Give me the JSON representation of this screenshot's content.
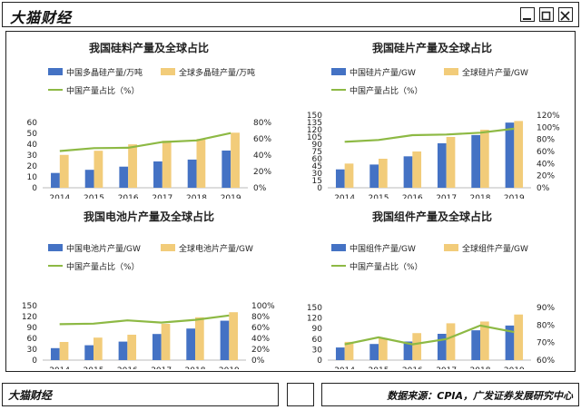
{
  "header": {
    "brand": "大猫财经"
  },
  "footer": {
    "brand": "大猫财经",
    "source": "数据来源：CPIA，广发证券发展研究中心"
  },
  "colors": {
    "china": "#4472C4",
    "global": "#F2CC7A",
    "share": "#8DB944"
  },
  "chart_data": [
    {
      "type": "bar",
      "title": "我国硅料产量及全球占比",
      "categories": [
        "2014",
        "2015",
        "2016",
        "2017",
        "2018",
        "2019"
      ],
      "series": [
        {
          "name": "中国多晶硅产量/万吨",
          "kind": "bar",
          "axis": "left",
          "values": [
            13.6,
            16.5,
            19.4,
            24.2,
            25.9,
            34.2
          ]
        },
        {
          "name": "全球多晶硅产量/万吨",
          "kind": "bar",
          "axis": "left",
          "values": [
            30.2,
            34.0,
            39.9,
            43.2,
            44.8,
            50.6
          ]
        },
        {
          "name": "中国产量占比（%）",
          "kind": "line",
          "axis": "right",
          "values": [
            45,
            48.5,
            49,
            56,
            58,
            67
          ]
        }
      ],
      "left_axis": {
        "min": 0,
        "max": 60,
        "ticks": [
          "0",
          "10",
          "20",
          "30",
          "40",
          "50",
          "60"
        ]
      },
      "right_axis": {
        "min": 0,
        "max": 80,
        "ticks": [
          "0%",
          "20%",
          "40%",
          "60%",
          "80%"
        ]
      }
    },
    {
      "type": "bar",
      "title": "我国硅片产量及全球占比",
      "categories": [
        "2014",
        "2015",
        "2016",
        "2017",
        "2018",
        "2019"
      ],
      "series": [
        {
          "name": "中国硅片产量/GW",
          "kind": "bar",
          "axis": "left",
          "values": [
            38,
            48,
            65,
            92,
            109,
            134.7
          ]
        },
        {
          "name": "全球硅片产量/GW",
          "kind": "bar",
          "axis": "left",
          "values": [
            50,
            60,
            75,
            105,
            120,
            138
          ]
        },
        {
          "name": "中国产量占比（%）",
          "kind": "line",
          "axis": "right",
          "values": [
            76,
            79,
            87,
            88,
            91,
            97.6
          ]
        }
      ],
      "left_axis": {
        "min": 0,
        "max": 150,
        "ticks": [
          "0",
          "15",
          "30",
          "45",
          "60",
          "75",
          "90",
          "105",
          "120",
          "135",
          "150"
        ]
      },
      "right_axis": {
        "min": 0,
        "max": 120,
        "ticks": [
          "0%",
          "20%",
          "40%",
          "60%",
          "80%",
          "100%",
          "120%"
        ]
      }
    },
    {
      "type": "bar",
      "title": "我国电池片产量及全球占比",
      "categories": [
        "2014",
        "2015",
        "2016",
        "2017",
        "2018",
        "2019"
      ],
      "series": [
        {
          "name": "中国电池片产量/GW",
          "kind": "bar",
          "axis": "left",
          "values": [
            33,
            41,
            51,
            72,
            87,
            108.6
          ]
        },
        {
          "name": "全球电池片产量/GW",
          "kind": "bar",
          "axis": "left",
          "values": [
            50,
            62,
            70,
            100,
            118,
            132
          ]
        },
        {
          "name": "中国产量占比（%）",
          "kind": "line",
          "axis": "right",
          "values": [
            66,
            67,
            73,
            69,
            74,
            82
          ]
        }
      ],
      "left_axis": {
        "min": 0,
        "max": 150,
        "ticks": [
          "0",
          "30",
          "60",
          "90",
          "120",
          "150"
        ]
      },
      "right_axis": {
        "min": 0,
        "max": 100,
        "ticks": [
          "0%",
          "20%",
          "40%",
          "60%",
          "80%",
          "100%"
        ]
      }
    },
    {
      "type": "bar",
      "title": "我国组件产量及全球占比",
      "categories": [
        "2014",
        "2015",
        "2016",
        "2017",
        "2018",
        "2019"
      ],
      "series": [
        {
          "name": "中国组件产量/GW",
          "kind": "bar",
          "axis": "left",
          "values": [
            36,
            46,
            53,
            75,
            85,
            98.6
          ]
        },
        {
          "name": "全球组件产量/GW",
          "kind": "bar",
          "axis": "left",
          "values": [
            52,
            63,
            77,
            105,
            110,
            130
          ]
        },
        {
          "name": "中国产量占比（%）",
          "kind": "line",
          "axis": "right",
          "values": [
            69,
            73,
            69,
            72,
            79.7,
            76
          ]
        }
      ],
      "left_axis": {
        "min": 0,
        "max": 150,
        "ticks": [
          "0",
          "30",
          "60",
          "90",
          "120",
          "150"
        ]
      },
      "right_axis": {
        "min": 60,
        "max": 90,
        "ticks": [
          "60%",
          "70%",
          "80%",
          "90%"
        ]
      }
    }
  ]
}
